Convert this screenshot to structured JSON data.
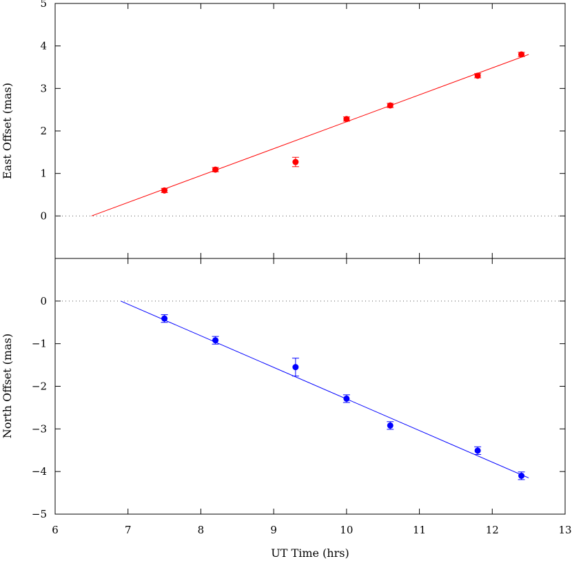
{
  "chart_data": [
    {
      "type": "scatter",
      "ylabel": "East Offset (mas)",
      "xlim": [
        6,
        13
      ],
      "ylim": [
        -1,
        5
      ],
      "yticks": [
        0,
        1,
        2,
        3,
        4,
        5
      ],
      "color": "#ff0000",
      "zero_line": "dotted",
      "fit_line": {
        "x": [
          6.5,
          12.5
        ],
        "y": [
          0.0,
          3.8
        ]
      },
      "series": [
        {
          "x": [
            7.5,
            8.2,
            9.3,
            10.0,
            10.6,
            11.8,
            12.4
          ],
          "y": [
            0.6,
            1.09,
            1.27,
            2.28,
            2.6,
            3.3,
            3.8
          ],
          "err": [
            0.05,
            0.05,
            0.11,
            0.05,
            0.05,
            0.05,
            0.05
          ]
        }
      ]
    },
    {
      "type": "scatter",
      "ylabel": "North Offset (mas)",
      "xlabel": "UT Time (hrs)",
      "xlim": [
        6,
        13
      ],
      "ylim": [
        -5,
        1
      ],
      "xticks": [
        6,
        7,
        8,
        9,
        10,
        11,
        12,
        13
      ],
      "yticks": [
        -5,
        -4,
        -3,
        -2,
        -1,
        0
      ],
      "color": "#0000ff",
      "zero_line": "dotted",
      "fit_line": {
        "x": [
          6.9,
          12.5
        ],
        "y": [
          0.0,
          -4.15
        ]
      },
      "series": [
        {
          "x": [
            7.5,
            8.2,
            9.3,
            10.0,
            10.6,
            11.8,
            12.4
          ],
          "y": [
            -0.41,
            -0.92,
            -1.55,
            -2.29,
            -2.92,
            -3.51,
            -4.1
          ],
          "err": [
            0.09,
            0.09,
            0.21,
            0.09,
            0.09,
            0.09,
            0.09
          ]
        }
      ]
    }
  ]
}
